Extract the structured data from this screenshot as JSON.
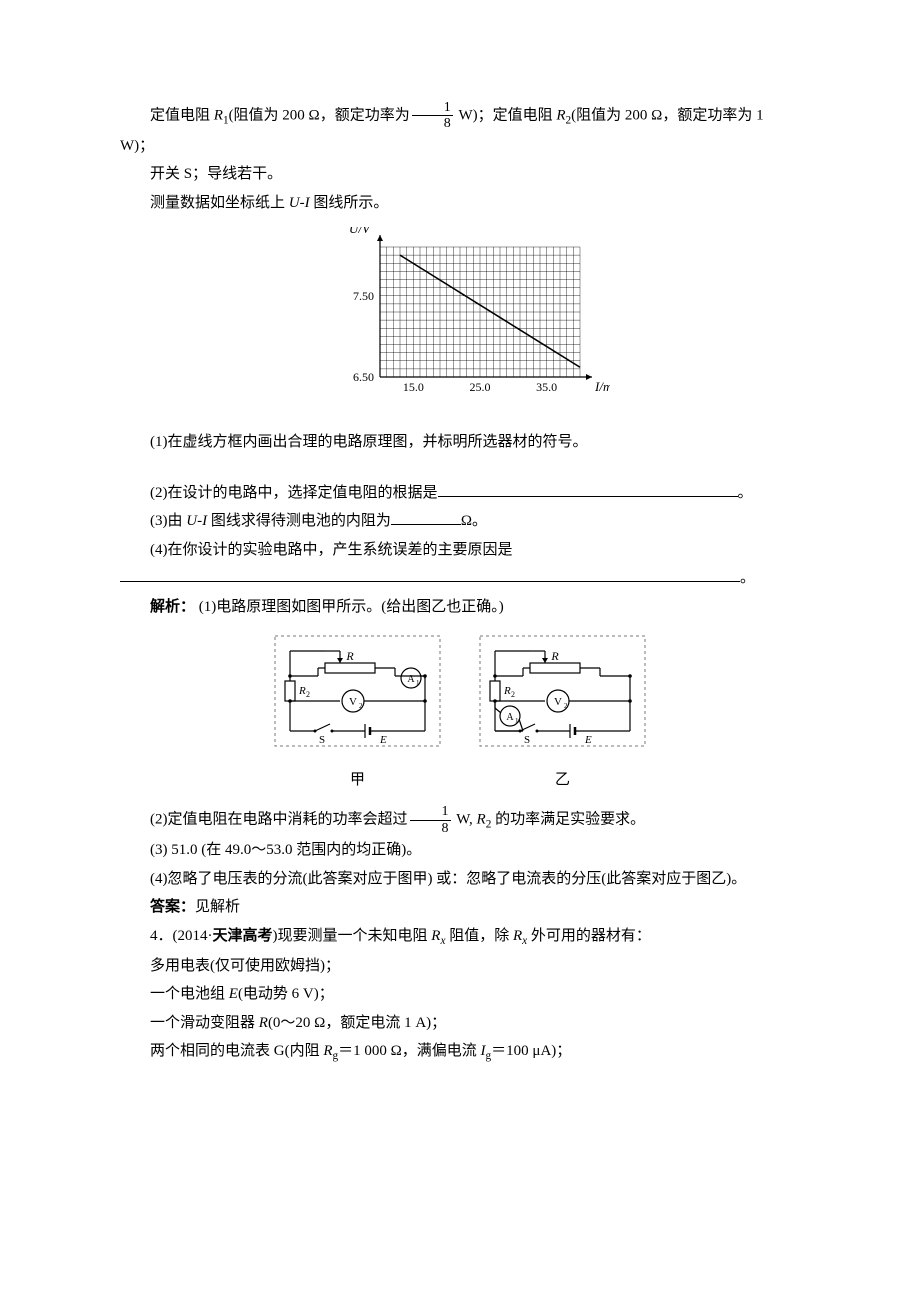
{
  "p1_a": "定值电阻 ",
  "p1_r1": "R",
  "p1_r1sub": "1",
  "p1_b": "(阻值为 200 Ω，额定功率为",
  "p1_frac_num": "1",
  "p1_frac_den": "8",
  "p1_c": " W)；定值电阻 ",
  "p1_r2": "R",
  "p1_r2sub": "2",
  "p1_d": "(阻值为 200 Ω，额定功率为 1 W)；",
  "p2": "开关 S；导线若干。",
  "p3_a": "测量数据如坐标纸上 ",
  "p3_ui": "U-I",
  "p3_b": " 图线所示。",
  "chart": {
    "type": "line",
    "y_label": "U/V",
    "x_label": "I/mA",
    "x_ticks": [
      15.0,
      25.0,
      35.0
    ],
    "x_tick_labels": [
      "15.0",
      "25.0",
      "35.0"
    ],
    "y_ticks": [
      6.5,
      7.5
    ],
    "y_tick_labels": [
      "6.50",
      "7.50"
    ],
    "xlim": [
      10,
      40
    ],
    "ylim": [
      6.5,
      8.1
    ],
    "grid_color": "#000000",
    "line_color": "#000000",
    "points": [
      [
        13,
        8.0
      ],
      [
        40,
        6.62
      ]
    ],
    "background": "#ffffff"
  },
  "q1": "(1)在虚线方框内画出合理的电路原理图，并标明所选器材的符号。",
  "q2": "(2)在设计的电路中，选择定值电阻的根据是",
  "q2_end": "。",
  "q3_a": "(3)由 ",
  "q3_ui": "U-I",
  "q3_b": " 图线求得待测电池的内阻为",
  "q3_unit": "Ω。",
  "q4": "(4)在你设计的实验电路中，产生系统误差的主要原因是",
  "q4_end": "。",
  "ans_head": "解析：",
  "ans1": " (1)电路原理图如图甲所示。(给出图乙也正确。)",
  "circuit": {
    "caption_a": "甲",
    "caption_b": "乙",
    "R": "R",
    "R2": "R",
    "R2_sub": "2",
    "A1": "A",
    "A1_sub": "1",
    "V2": "V",
    "V2_sub": "2",
    "S": "S",
    "E": "E",
    "border_color": "#777777",
    "line_color": "#000000"
  },
  "ans2_a": "(2)定值电阻在电路中消耗的功率会超过",
  "ans2_num": "1",
  "ans2_den": "8",
  "ans2_b": " W, ",
  "ans2_r2": "R",
  "ans2_r2sub": "2",
  "ans2_c": " 的功率满足实验要求。",
  "ans3": "(3) 51.0 (在 49.0～53.0 范围内的均正确)。",
  "ans4": "(4)忽略了电压表的分流(此答案对应于图甲)  或：忽略了电流表的分压(此答案对应于图乙)。",
  "final_head": "答案：",
  "final": "见解析",
  "p4_a": "4．(2014·",
  "p4_bold": "天津高考",
  "p4_b": ")现要测量一个未知电阻 ",
  "p4_rx": "R",
  "p4_rxsub": "x",
  "p4_c": " 阻值，除 ",
  "p4_rx2": "R",
  "p4_rx2sub": "x",
  "p4_d": " 外可用的器材有：",
  "p5": "多用电表(仅可使用欧姆挡)；",
  "p6_a": "一个电池组 ",
  "p6_e": "E",
  "p6_b": "(电动势 6 V)；",
  "p7_a": "一个滑动变阻器 ",
  "p7_r": "R",
  "p7_b": "(0～20 Ω，额定电流 1 A)；",
  "p8_a": "两个相同的电流表 G(内阻 ",
  "p8_rg": "R",
  "p8_rgsub": "g",
  "p8_b": "＝1 000 Ω，满偏电流 ",
  "p8_ig": "I",
  "p8_igsub": "g",
  "p8_c": "＝100 μA)；"
}
